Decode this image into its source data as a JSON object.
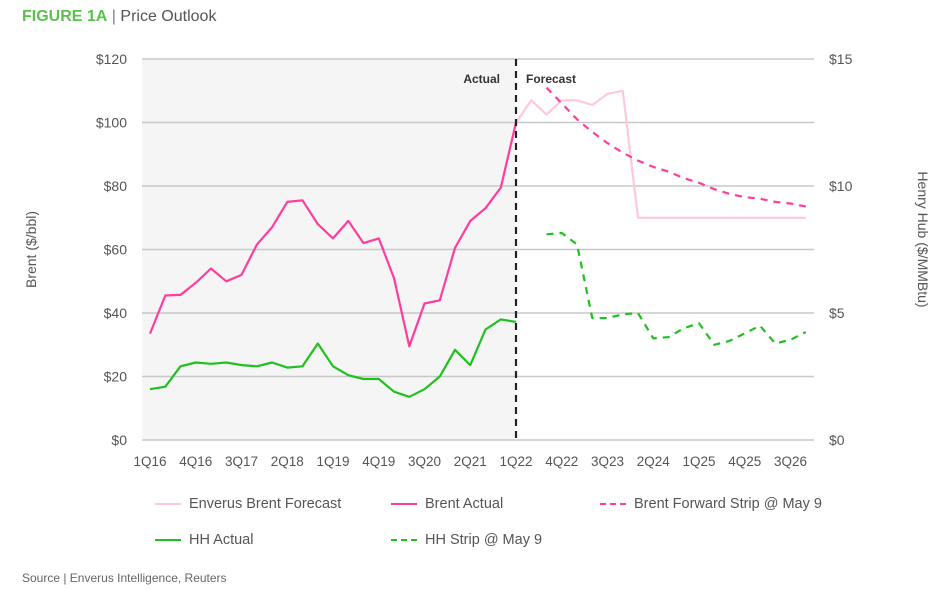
{
  "header": {
    "figure_label": "FIGURE 1A",
    "separator": "|",
    "title": "Price Outlook"
  },
  "source": "Source | Enverus Intelligence, Reuters",
  "chart_data": {
    "type": "line",
    "title": "Price Outlook",
    "ylabel_left": "Brent ($/bbl)",
    "ylabel_right": "Henry Hub ($/MMBtu)",
    "ylim_left": [
      0,
      120
    ],
    "ylim_right": [
      0,
      15
    ],
    "left_ticks": [
      "$0",
      "$20",
      "$40",
      "$60",
      "$80",
      "$100",
      "$120"
    ],
    "left_tick_values": [
      0,
      20,
      40,
      60,
      80,
      100,
      120
    ],
    "right_ticks": [
      "$0",
      "$5",
      "$10",
      "$15"
    ],
    "right_tick_values": [
      0,
      5,
      10,
      15
    ],
    "grid": true,
    "quarters": [
      "1Q16",
      "2Q16",
      "3Q16",
      "4Q16",
      "1Q17",
      "2Q17",
      "3Q17",
      "4Q17",
      "1Q18",
      "2Q18",
      "3Q18",
      "4Q18",
      "1Q19",
      "2Q19",
      "3Q19",
      "4Q19",
      "1Q20",
      "2Q20",
      "3Q20",
      "4Q20",
      "1Q21",
      "2Q21",
      "3Q21",
      "4Q21",
      "1Q22",
      "2Q22",
      "3Q22",
      "4Q22",
      "1Q23",
      "2Q23",
      "3Q23",
      "4Q23",
      "1Q24",
      "2Q24",
      "3Q24",
      "4Q24",
      "1Q25",
      "2Q25",
      "3Q25",
      "4Q25",
      "1Q26",
      "2Q26",
      "3Q26",
      "4Q26"
    ],
    "x_tick_labels": [
      "1Q16",
      "4Q16",
      "3Q17",
      "2Q18",
      "1Q19",
      "4Q19",
      "3Q20",
      "2Q21",
      "1Q22",
      "4Q22",
      "3Q23",
      "2Q24",
      "1Q25",
      "4Q25",
      "3Q26"
    ],
    "x_tick_every": 3,
    "divider_quarter": "1Q22",
    "annotations": {
      "actual": "Actual",
      "forecast": "Forecast"
    },
    "legend_position": "bottom",
    "series": [
      {
        "name": "Enverus Brent Forecast",
        "axis": "left",
        "color": "#ffc8dd",
        "dashed": false,
        "start_index": 24,
        "values": [
          100,
          107,
          102.5,
          107,
          107,
          105.5,
          109,
          110,
          70,
          70,
          70,
          70,
          70,
          70,
          70,
          70,
          70,
          70,
          70,
          70
        ]
      },
      {
        "name": "Brent Actual",
        "axis": "left",
        "color": "#ff3d9a",
        "dashed": false,
        "start_index": 0,
        "values": [
          33.5,
          45.5,
          45.7,
          49.5,
          54,
          50,
          52,
          61.5,
          67,
          75,
          75.5,
          68,
          63.5,
          69,
          62,
          63.5,
          51,
          29.5,
          43,
          44,
          60.5,
          69,
          73,
          79.5,
          100
        ]
      },
      {
        "name": "Brent Forward Strip @ May 9",
        "axis": "left",
        "color": "#ff3d9a",
        "dashed": true,
        "start_index": 26,
        "values": [
          111,
          106,
          101,
          97,
          93.5,
          90.5,
          88,
          86,
          84.5,
          82.5,
          81,
          79,
          77.5,
          76.5,
          76,
          75,
          74.5,
          73.5
        ]
      },
      {
        "name": "HH Actual",
        "axis": "right",
        "color": "#1fc01f",
        "dashed": false,
        "start_index": 0,
        "values": [
          2.0,
          2.1,
          2.9,
          3.05,
          3.0,
          3.05,
          2.95,
          2.9,
          3.05,
          2.85,
          2.9,
          3.8,
          2.9,
          2.55,
          2.4,
          2.4,
          1.9,
          1.7,
          2.0,
          2.5,
          3.55,
          2.95,
          4.35,
          4.75,
          4.65
        ]
      },
      {
        "name": "HH Strip @ May 9",
        "axis": "right",
        "color": "#1fc01f",
        "dashed": true,
        "start_index": 26,
        "values": [
          8.1,
          8.15,
          7.7,
          4.8,
          4.8,
          4.95,
          5.0,
          4.0,
          4.05,
          4.4,
          4.6,
          3.75,
          3.9,
          4.2,
          4.5,
          3.8,
          3.95,
          4.25
        ]
      }
    ],
    "legend_order": [
      0,
      1,
      2,
      3,
      4
    ]
  },
  "colors": {
    "figure_label": "#5cc04e",
    "actual_shade": "#f5f5f5",
    "gridline": "#c8c8c8",
    "divider": "#222222"
  }
}
